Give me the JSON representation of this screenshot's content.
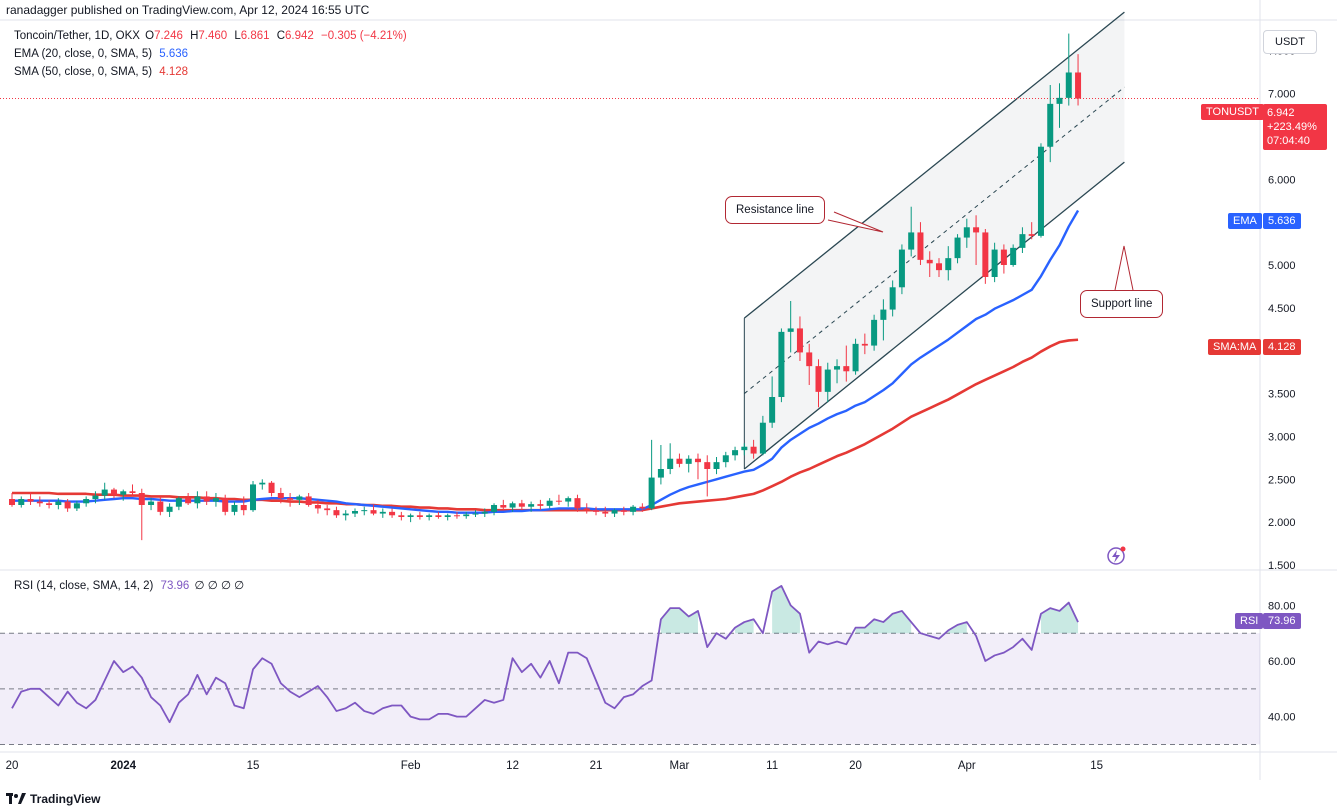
{
  "header": {
    "publisher": "ranadagger published on TradingView.com, Apr 12, 2024 16:55 UTC"
  },
  "legend": {
    "symbol": "Toncoin/Tether, 1D, OKX",
    "ohlc": [
      {
        "label": "O",
        "value": "7.246"
      },
      {
        "label": "H",
        "value": "7.460"
      },
      {
        "label": "L",
        "value": "6.861"
      },
      {
        "label": "C",
        "value": "6.942"
      },
      {
        "label": "",
        "value": "−0.305 (−4.21%)"
      }
    ],
    "ema_label": "EMA (20, close, 0, SMA, 5)",
    "ema_value": "5.636",
    "sma_label": "SMA (50, close, 0, SMA, 5)",
    "sma_value": "4.128",
    "rsi_label": "RSI (14, close, SMA, 14, 2)",
    "rsi_value": "73.96",
    "rsi_nan": "∅ ∅ ∅ ∅"
  },
  "price_tag": {
    "symbol": "TONUSDT",
    "price": "6.942",
    "change": "+223.49%",
    "countdown": "07:04:40"
  },
  "ema_tag": {
    "label": "EMA",
    "value": "5.636"
  },
  "sma_tag": {
    "label": "SMA:MA",
    "value": "4.128"
  },
  "rsi_tag": {
    "label": "RSI",
    "value": "73.96"
  },
  "currency": "USDT",
  "annotations": {
    "resistance": "Resistance line",
    "support": "Support line"
  },
  "branding": "TradingView",
  "colors": {
    "up": "#089981",
    "down": "#f23645",
    "ema": "#2962ff",
    "sma": "#e53935",
    "rsi_line": "#7e57c2",
    "rsi_band": "rgba(126,87,194,0.10)",
    "channel_fill": "rgba(120,130,140,0.09)",
    "channel_line": "#2a4752"
  },
  "chart_data": [
    {
      "type": "candlestick",
      "title": "Toncoin/Tether, 1D, OKX",
      "ylim": [
        1.5,
        7.8
      ],
      "y_ticks": [
        "1.500",
        "2.000",
        "2.500",
        "3.000",
        "3.500",
        "4.000",
        "4.500",
        "5.000",
        "5.500",
        "6.000",
        "6.500",
        "7.000",
        "7.500"
      ],
      "x_ticks": [
        {
          "label": "20",
          "i": 0
        },
        {
          "label": "2024",
          "i": 12
        },
        {
          "label": "15",
          "i": 26
        },
        {
          "label": "Feb",
          "i": 43
        },
        {
          "label": "12",
          "i": 54
        },
        {
          "label": "21",
          "i": 63
        },
        {
          "label": "Mar",
          "i": 72
        },
        {
          "label": "11",
          "i": 82
        },
        {
          "label": "20",
          "i": 91
        },
        {
          "label": "Apr",
          "i": 103
        },
        {
          "label": "15",
          "i": 117
        }
      ],
      "ohlc": [
        [
          2.27,
          2.34,
          2.18,
          2.2
        ],
        [
          2.2,
          2.3,
          2.17,
          2.27
        ],
        [
          2.27,
          2.35,
          2.2,
          2.24
        ],
        [
          2.24,
          2.3,
          2.18,
          2.22
        ],
        [
          2.22,
          2.26,
          2.16,
          2.2
        ],
        [
          2.2,
          2.28,
          2.15,
          2.24
        ],
        [
          2.24,
          2.27,
          2.12,
          2.16
        ],
        [
          2.16,
          2.25,
          2.13,
          2.22
        ],
        [
          2.22,
          2.3,
          2.18,
          2.27
        ],
        [
          2.27,
          2.36,
          2.22,
          2.31
        ],
        [
          2.31,
          2.46,
          2.26,
          2.38
        ],
        [
          2.38,
          2.4,
          2.28,
          2.32
        ],
        [
          2.32,
          2.38,
          2.25,
          2.36
        ],
        [
          2.36,
          2.44,
          2.3,
          2.34
        ],
        [
          2.34,
          2.39,
          1.79,
          2.2
        ],
        [
          2.2,
          2.28,
          2.14,
          2.24
        ],
        [
          2.24,
          2.3,
          2.08,
          2.12
        ],
        [
          2.12,
          2.22,
          2.06,
          2.18
        ],
        [
          2.18,
          2.3,
          2.14,
          2.28
        ],
        [
          2.28,
          2.34,
          2.2,
          2.22
        ],
        [
          2.22,
          2.36,
          2.16,
          2.3
        ],
        [
          2.3,
          2.36,
          2.2,
          2.24
        ],
        [
          2.24,
          2.34,
          2.18,
          2.28
        ],
        [
          2.28,
          2.32,
          2.08,
          2.12
        ],
        [
          2.12,
          2.24,
          2.08,
          2.2
        ],
        [
          2.2,
          2.3,
          2.08,
          2.14
        ],
        [
          2.14,
          2.48,
          2.12,
          2.44
        ],
        [
          2.44,
          2.5,
          2.38,
          2.46
        ],
        [
          2.46,
          2.48,
          2.3,
          2.34
        ],
        [
          2.34,
          2.4,
          2.22,
          2.28
        ],
        [
          2.28,
          2.34,
          2.18,
          2.26
        ],
        [
          2.26,
          2.32,
          2.2,
          2.3
        ],
        [
          2.3,
          2.34,
          2.18,
          2.2
        ],
        [
          2.2,
          2.26,
          2.1,
          2.16
        ],
        [
          2.16,
          2.2,
          2.08,
          2.14
        ],
        [
          2.14,
          2.18,
          2.05,
          2.08
        ],
        [
          2.08,
          2.14,
          2.02,
          2.1
        ],
        [
          2.1,
          2.16,
          2.06,
          2.13
        ],
        [
          2.13,
          2.18,
          2.08,
          2.14
        ],
        [
          2.14,
          2.2,
          2.08,
          2.1
        ],
        [
          2.1,
          2.16,
          2.05,
          2.12
        ],
        [
          2.12,
          2.16,
          2.05,
          2.08
        ],
        [
          2.08,
          2.12,
          2.02,
          2.06
        ],
        [
          2.06,
          2.1,
          2.0,
          2.08
        ],
        [
          2.08,
          2.12,
          2.03,
          2.06
        ],
        [
          2.06,
          2.1,
          2.02,
          2.08
        ],
        [
          2.08,
          2.12,
          2.04,
          2.06
        ],
        [
          2.06,
          2.1,
          2.02,
          2.08
        ],
        [
          2.08,
          2.12,
          2.04,
          2.07
        ],
        [
          2.07,
          2.12,
          2.04,
          2.09
        ],
        [
          2.09,
          2.14,
          2.06,
          2.1
        ],
        [
          2.1,
          2.16,
          2.06,
          2.12
        ],
        [
          2.12,
          2.22,
          2.08,
          2.2
        ],
        [
          2.2,
          2.26,
          2.14,
          2.17
        ],
        [
          2.17,
          2.24,
          2.12,
          2.22
        ],
        [
          2.22,
          2.26,
          2.14,
          2.18
        ],
        [
          2.18,
          2.24,
          2.12,
          2.21
        ],
        [
          2.21,
          2.26,
          2.14,
          2.19
        ],
        [
          2.19,
          2.28,
          2.16,
          2.25
        ],
        [
          2.25,
          2.32,
          2.2,
          2.24
        ],
        [
          2.24,
          2.3,
          2.18,
          2.28
        ],
        [
          2.28,
          2.32,
          2.12,
          2.16
        ],
        [
          2.16,
          2.22,
          2.1,
          2.14
        ],
        [
          2.14,
          2.18,
          2.08,
          2.12
        ],
        [
          2.12,
          2.18,
          2.06,
          2.1
        ],
        [
          2.1,
          2.16,
          2.06,
          2.14
        ],
        [
          2.14,
          2.18,
          2.08,
          2.12
        ],
        [
          2.12,
          2.2,
          2.08,
          2.18
        ],
        [
          2.18,
          2.22,
          2.12,
          2.16
        ],
        [
          2.16,
          2.96,
          2.14,
          2.52
        ],
        [
          2.52,
          2.9,
          2.44,
          2.62
        ],
        [
          2.62,
          2.92,
          2.56,
          2.74
        ],
        [
          2.74,
          2.8,
          2.64,
          2.68
        ],
        [
          2.68,
          2.78,
          2.58,
          2.74
        ],
        [
          2.74,
          2.8,
          2.5,
          2.7
        ],
        [
          2.7,
          2.78,
          2.3,
          2.62
        ],
        [
          2.62,
          2.76,
          2.56,
          2.7
        ],
        [
          2.7,
          2.82,
          2.64,
          2.78
        ],
        [
          2.78,
          2.88,
          2.72,
          2.84
        ],
        [
          2.84,
          2.92,
          2.78,
          2.88
        ],
        [
          2.88,
          2.96,
          2.74,
          2.8
        ],
        [
          2.8,
          3.24,
          2.78,
          3.16
        ],
        [
          3.16,
          3.7,
          3.1,
          3.46
        ],
        [
          3.46,
          4.26,
          3.4,
          4.22
        ],
        [
          4.22,
          4.58,
          3.98,
          4.26
        ],
        [
          4.26,
          4.4,
          3.88,
          3.98
        ],
        [
          3.98,
          4.08,
          3.6,
          3.82
        ],
        [
          3.82,
          3.9,
          3.34,
          3.52
        ],
        [
          3.52,
          3.86,
          3.4,
          3.78
        ],
        [
          3.78,
          3.9,
          3.62,
          3.82
        ],
        [
          3.82,
          4.06,
          3.64,
          3.76
        ],
        [
          3.76,
          4.14,
          3.72,
          4.08
        ],
        [
          4.08,
          4.2,
          3.96,
          4.06
        ],
        [
          4.06,
          4.42,
          4.0,
          4.36
        ],
        [
          4.36,
          4.6,
          4.12,
          4.48
        ],
        [
          4.48,
          4.82,
          4.4,
          4.74
        ],
        [
          4.74,
          5.24,
          4.66,
          5.18
        ],
        [
          5.18,
          5.68,
          5.1,
          5.38
        ],
        [
          5.38,
          5.5,
          5.0,
          5.06
        ],
        [
          5.06,
          5.16,
          4.86,
          5.02
        ],
        [
          5.02,
          5.08,
          4.86,
          4.94
        ],
        [
          4.94,
          5.22,
          4.82,
          5.08
        ],
        [
          5.08,
          5.36,
          5.02,
          5.32
        ],
        [
          5.32,
          5.54,
          5.2,
          5.44
        ],
        [
          5.44,
          5.58,
          5.0,
          5.38
        ],
        [
          5.38,
          5.42,
          4.78,
          4.86
        ],
        [
          4.86,
          5.26,
          4.8,
          5.18
        ],
        [
          5.18,
          5.24,
          4.9,
          5.0
        ],
        [
          5.0,
          5.24,
          4.98,
          5.2
        ],
        [
          5.2,
          5.44,
          5.14,
          5.36
        ],
        [
          5.36,
          5.5,
          5.3,
          5.34
        ],
        [
          5.34,
          6.42,
          5.32,
          6.38
        ],
        [
          6.38,
          7.1,
          6.2,
          6.88
        ],
        [
          6.88,
          7.12,
          6.6,
          6.95
        ],
        [
          6.95,
          7.7,
          6.86,
          7.246
        ],
        [
          7.246,
          7.46,
          6.861,
          6.942
        ]
      ],
      "series": [
        {
          "name": "EMA (20, close, 0, SMA, 5)",
          "values": [
            2.25,
            2.25,
            2.25,
            2.25,
            2.25,
            2.25,
            2.24,
            2.24,
            2.24,
            2.25,
            2.26,
            2.27,
            2.28,
            2.28,
            2.27,
            2.27,
            2.26,
            2.25,
            2.25,
            2.25,
            2.25,
            2.25,
            2.25,
            2.24,
            2.24,
            2.24,
            2.26,
            2.27,
            2.28,
            2.28,
            2.28,
            2.28,
            2.27,
            2.26,
            2.25,
            2.24,
            2.22,
            2.21,
            2.2,
            2.19,
            2.18,
            2.17,
            2.16,
            2.15,
            2.14,
            2.13,
            2.12,
            2.12,
            2.11,
            2.11,
            2.11,
            2.11,
            2.12,
            2.12,
            2.13,
            2.13,
            2.14,
            2.14,
            2.15,
            2.16,
            2.16,
            2.16,
            2.16,
            2.15,
            2.15,
            2.15,
            2.15,
            2.15,
            2.15,
            2.2,
            2.26,
            2.32,
            2.37,
            2.41,
            2.44,
            2.47,
            2.5,
            2.53,
            2.56,
            2.59,
            2.61,
            2.67,
            2.74,
            2.87,
            2.96,
            3.03,
            3.1,
            3.15,
            3.21,
            3.26,
            3.3,
            3.36,
            3.4,
            3.47,
            3.54,
            3.62,
            3.73,
            3.84,
            3.92,
            3.99,
            4.06,
            4.13,
            4.21,
            4.29,
            4.37,
            4.42,
            4.49,
            4.54,
            4.59,
            4.65,
            4.71,
            4.87,
            5.06,
            5.23,
            5.45,
            5.636
          ]
        },
        {
          "name": "SMA (50, close, 0, SMA, 5)",
          "values": [
            2.34,
            2.34,
            2.34,
            2.34,
            2.34,
            2.33,
            2.33,
            2.33,
            2.33,
            2.32,
            2.32,
            2.32,
            2.31,
            2.31,
            2.31,
            2.3,
            2.3,
            2.3,
            2.29,
            2.29,
            2.29,
            2.28,
            2.28,
            2.27,
            2.27,
            2.26,
            2.26,
            2.26,
            2.25,
            2.25,
            2.24,
            2.24,
            2.23,
            2.23,
            2.22,
            2.22,
            2.21,
            2.21,
            2.2,
            2.2,
            2.19,
            2.19,
            2.18,
            2.18,
            2.17,
            2.17,
            2.16,
            2.16,
            2.15,
            2.15,
            2.15,
            2.14,
            2.14,
            2.14,
            2.14,
            2.14,
            2.14,
            2.14,
            2.14,
            2.14,
            2.14,
            2.14,
            2.14,
            2.14,
            2.14,
            2.14,
            2.14,
            2.14,
            2.14,
            2.16,
            2.18,
            2.2,
            2.22,
            2.23,
            2.24,
            2.25,
            2.26,
            2.27,
            2.29,
            2.31,
            2.33,
            2.37,
            2.42,
            2.47,
            2.53,
            2.58,
            2.62,
            2.67,
            2.72,
            2.77,
            2.81,
            2.86,
            2.91,
            2.97,
            3.03,
            3.09,
            3.16,
            3.23,
            3.28,
            3.33,
            3.38,
            3.43,
            3.49,
            3.55,
            3.61,
            3.66,
            3.71,
            3.76,
            3.81,
            3.87,
            3.92,
            3.99,
            4.05,
            4.1,
            4.12,
            4.128
          ]
        }
      ],
      "channel": {
        "lower_start": {
          "i": 79,
          "value": 2.62
        },
        "lower_end": {
          "i": 120,
          "value": 6.2
        },
        "upper_start": {
          "i": 79,
          "value": 4.38
        },
        "upper_end": {
          "i": 120,
          "value": 7.95
        }
      },
      "last_price_line": 6.942
    },
    {
      "type": "line",
      "title": "RSI (14, close, SMA, 14, 2)",
      "ylim": [
        28,
        92
      ],
      "y_ticks": [
        "40.00",
        "60.00",
        "80.00"
      ],
      "bands": [
        30,
        50,
        70
      ],
      "series": [
        {
          "name": "RSI (14, close, SMA, 14, 2)",
          "values": [
            43,
            49,
            50,
            50,
            47,
            44,
            49,
            45,
            43,
            46,
            53,
            60,
            56,
            58,
            54,
            47,
            44,
            38,
            45,
            48,
            55,
            48,
            54,
            52,
            44,
            43,
            57,
            61,
            59,
            52,
            49,
            47,
            49,
            51,
            47,
            42,
            43,
            45,
            42,
            41,
            43,
            44,
            44,
            40,
            39,
            39,
            41,
            41,
            40,
            40,
            43,
            46,
            45,
            46,
            61,
            56,
            59,
            54,
            60,
            52,
            63,
            63,
            61,
            53,
            45,
            43,
            47,
            48,
            51,
            53,
            75,
            79,
            79,
            76,
            78,
            65,
            70,
            68,
            72,
            74,
            75,
            70,
            85,
            87,
            80,
            77,
            63,
            67,
            66,
            67,
            66,
            72,
            72,
            75,
            74,
            77,
            78,
            74,
            70,
            69,
            68,
            71,
            73,
            74,
            69,
            60,
            62,
            63,
            65,
            68,
            64,
            77,
            79,
            78,
            81,
            73.96
          ]
        }
      ]
    }
  ]
}
